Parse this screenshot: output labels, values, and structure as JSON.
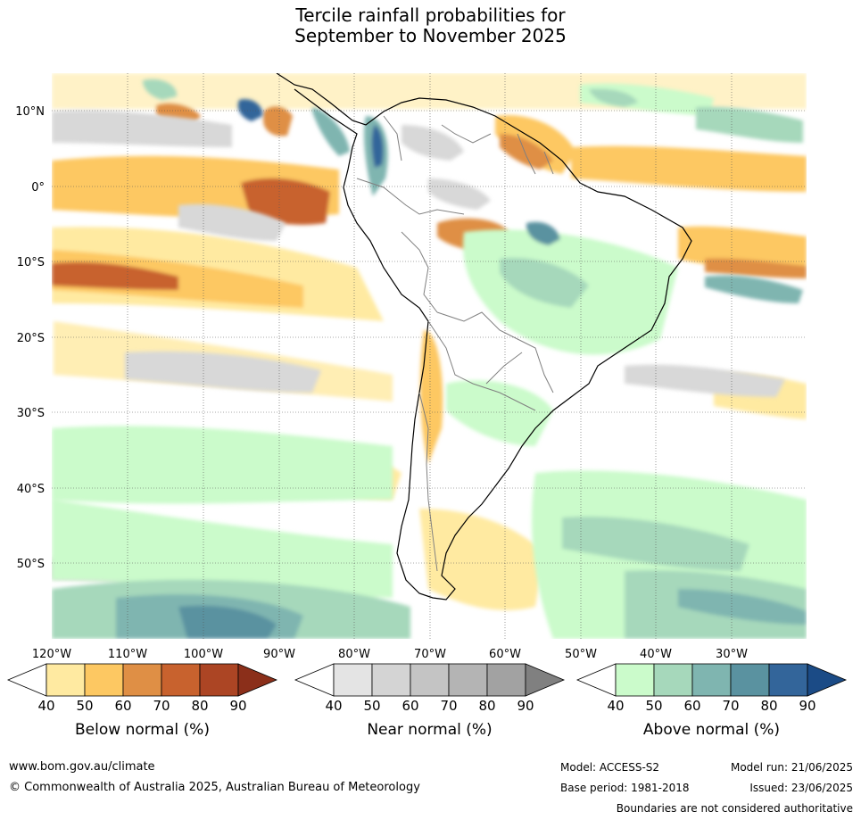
{
  "title_line1": "Tercile rainfall probabilities for",
  "title_line2": "September to November 2025",
  "latitude_labels": [
    "10°N",
    "0°",
    "10°S",
    "20°S",
    "30°S",
    "40°S",
    "50°S"
  ],
  "longitude_labels": [
    "120°W",
    "110°W",
    "100°W",
    "90°W",
    "80°W",
    "70°W",
    "60°W",
    "50°W",
    "40°W",
    "30°W"
  ],
  "colorbars": [
    {
      "label": "Below normal (%)",
      "ticks": [
        "40",
        "50",
        "60",
        "70",
        "80",
        "90"
      ],
      "colors": [
        "#ffffff",
        "#ffeaa1",
        "#fdc862",
        "#df8f45",
        "#c8622e",
        "#ac4524",
        "#8b2f1a"
      ]
    },
    {
      "label": "Near normal (%)",
      "ticks": [
        "40",
        "50",
        "60",
        "70",
        "80",
        "90"
      ],
      "colors": [
        "#ffffff",
        "#e4e4e4",
        "#d4d4d4",
        "#c4c4c4",
        "#b4b4b4",
        "#a2a2a2",
        "#808080"
      ]
    },
    {
      "label": "Above normal (%)",
      "ticks": [
        "40",
        "50",
        "60",
        "70",
        "80",
        "90"
      ],
      "colors": [
        "#ffffff",
        "#cbfbcb",
        "#a6d8bb",
        "#7fb5b0",
        "#5a92a0",
        "#33659a",
        "#1b4b86"
      ]
    }
  ],
  "footer": {
    "website": "www.bom.gov.au/climate",
    "copyright": "© Commonwealth of Australia 2025, Australian Bureau of Meteorology",
    "model": "Model: ACCESS-S2",
    "base_period": "Base period: 1981-2018",
    "model_run": "Model run: 21/06/2025",
    "issued": "Issued: 23/06/2025",
    "disclaimer": "Boundaries are not considered authoritative"
  }
}
